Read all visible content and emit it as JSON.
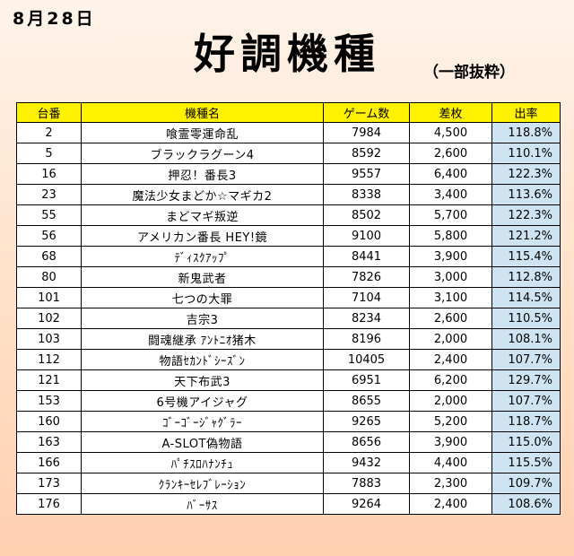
{
  "date": "8月28日",
  "title": "好調機種",
  "subtitle": "（一部抜粋）",
  "colors": {
    "header_bg": "#fff100",
    "rate_bg": "#cfe4f3"
  },
  "table": {
    "headers": [
      "台番",
      "機種名",
      "ゲーム数",
      "差枚",
      "出率"
    ],
    "rows": [
      [
        "2",
        "喰霊零運命乱",
        "7984",
        "4,500",
        "118.8%"
      ],
      [
        "5",
        "ブラックラグーン4",
        "8592",
        "2,600",
        "110.1%"
      ],
      [
        "16",
        "押忍！番長3",
        "9557",
        "6,400",
        "122.3%"
      ],
      [
        "23",
        "魔法少女まどか☆マギカ2",
        "8338",
        "3,400",
        "113.6%"
      ],
      [
        "55",
        "まどマギ叛逆",
        "8502",
        "5,700",
        "122.3%"
      ],
      [
        "56",
        "アメリカン番長 HEY!鏡",
        "9100",
        "5,800",
        "121.2%"
      ],
      [
        "68",
        "ﾃﾞｨｽｸｱｯﾌﾟ",
        "8441",
        "3,900",
        "115.4%"
      ],
      [
        "80",
        "新鬼武者",
        "7826",
        "3,000",
        "112.8%"
      ],
      [
        "101",
        "七つの大罪",
        "7104",
        "3,100",
        "114.5%"
      ],
      [
        "102",
        "吉宗3",
        "8234",
        "2,600",
        "110.5%"
      ],
      [
        "103",
        "闘魂継承 ｱﾝﾄﾆｵ猪木",
        "8196",
        "2,000",
        "108.1%"
      ],
      [
        "112",
        "物語ｾｶﾝﾄﾞｼｰｽﾞﾝ",
        "10405",
        "2,400",
        "107.7%"
      ],
      [
        "121",
        "天下布武3",
        "6951",
        "6,200",
        "129.7%"
      ],
      [
        "153",
        "6号機アイジャグ",
        "8655",
        "2,000",
        "107.7%"
      ],
      [
        "160",
        "ｺﾞｰｺﾞｰｼﾞｬｸﾞﾗｰ",
        "9265",
        "5,200",
        "118.7%"
      ],
      [
        "163",
        "A-SLOT偽物語",
        "8656",
        "3,900",
        "115.0%"
      ],
      [
        "166",
        "ﾊﾟﾁｽﾛﾊﾅﾝﾁｭ",
        "9432",
        "4,400",
        "115.5%"
      ],
      [
        "173",
        "ｸﾗﾝｷｰｾﾚﾌﾞﾚｰｼｮﾝ",
        "7883",
        "2,300",
        "109.7%"
      ],
      [
        "176",
        "ﾊﾞｰｻｽ",
        "9264",
        "2,400",
        "108.6%"
      ]
    ]
  }
}
